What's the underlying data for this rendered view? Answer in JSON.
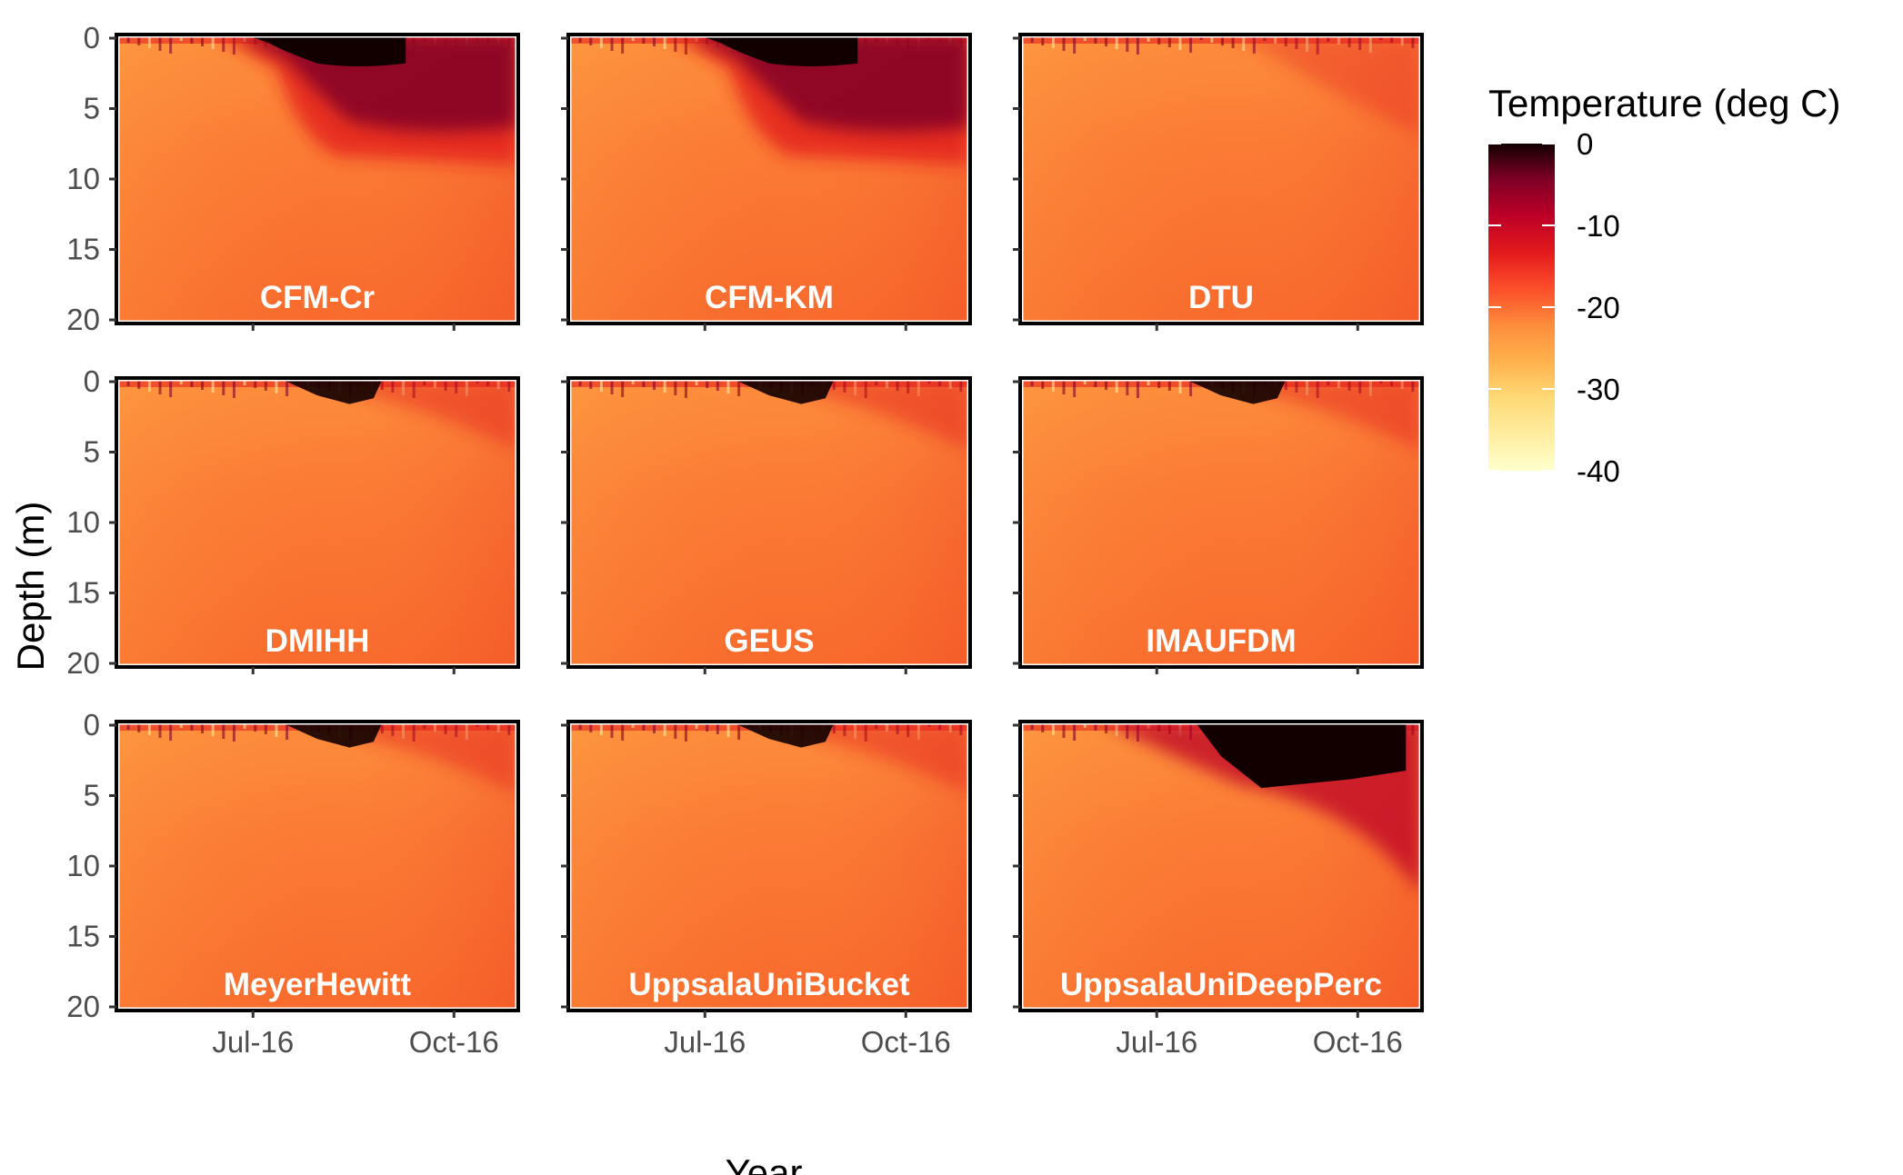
{
  "chart_data": {
    "type": "heatmap",
    "xlabel": "Year",
    "ylabel": "Depth (m)",
    "x_ticks": [
      "Jul-16",
      "Oct-16"
    ],
    "y_ticks": [
      0,
      5,
      10,
      15,
      20
    ],
    "ylim": [
      0,
      20
    ],
    "y_reversed": true,
    "legend": {
      "title": "Temperature (deg C)",
      "ticks": [
        0,
        -10,
        -20,
        -30,
        -40
      ],
      "range": [
        -40,
        0
      ],
      "placement": "top-right",
      "colors": [
        "#ffffcc",
        "#ffeda0",
        "#fed976",
        "#feb24c",
        "#fd8d3c",
        "#fc4e2a",
        "#e31a1c",
        "#bd0026",
        "#800026",
        "#120000"
      ]
    },
    "panels": [
      {
        "name": "CFM-Cr",
        "profile": "deep"
      },
      {
        "name": "CFM-KM",
        "profile": "deep"
      },
      {
        "name": "DTU",
        "profile": "smooth"
      },
      {
        "name": "DMIHH",
        "profile": "shallow"
      },
      {
        "name": "GEUS",
        "profile": "shallow"
      },
      {
        "name": "IMAUFDM",
        "profile": "shallow"
      },
      {
        "name": "MeyerHewitt",
        "profile": "shallow"
      },
      {
        "name": "UppsalaUniBucket",
        "profile": "shallow"
      },
      {
        "name": "UppsalaUniDeepPerc",
        "profile": "wedge"
      }
    ]
  }
}
